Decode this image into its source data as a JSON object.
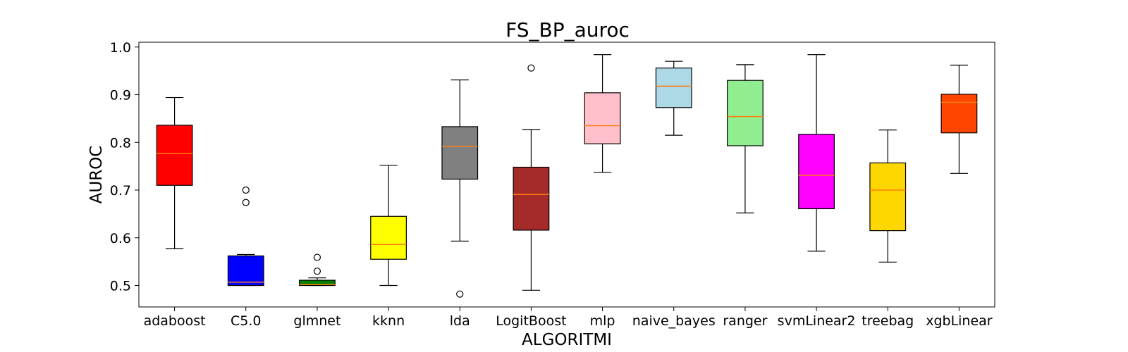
{
  "chart_data": {
    "type": "boxplot",
    "title": "FS_BP_auroc",
    "xlabel": "ALGORITMI",
    "ylabel": "AUROC",
    "ylim": [
      0.455,
      1.01
    ],
    "yticks": [
      "0.5",
      "0.6",
      "0.7",
      "0.8",
      "0.9",
      "1.0"
    ],
    "grid": false,
    "median_color": "#ff7f0e",
    "categories": [
      "adaboost",
      "C5.0",
      "glmnet",
      "kknn",
      "lda",
      "LogitBoost",
      "mlp",
      "naive_bayes",
      "ranger",
      "svmLinear2",
      "treebag",
      "xgbLinear"
    ],
    "boxes": [
      {
        "category": "adaboost",
        "whislo": 0.577,
        "q1": 0.71,
        "med": 0.777,
        "q3": 0.836,
        "whishi": 0.894,
        "fliers": [],
        "color": "#ff0000"
      },
      {
        "category": "C5.0",
        "whislo": 0.5,
        "q1": 0.5,
        "med": 0.507,
        "q3": 0.562,
        "whishi": 0.565,
        "fliers": [
          0.674,
          0.7
        ],
        "color": "#0000ff"
      },
      {
        "category": "glmnet",
        "whislo": 0.5,
        "q1": 0.5,
        "med": 0.502,
        "q3": 0.511,
        "whishi": 0.516,
        "fliers": [
          0.53,
          0.559
        ],
        "color": "#008000"
      },
      {
        "category": "kknn",
        "whislo": 0.5,
        "q1": 0.555,
        "med": 0.586,
        "q3": 0.645,
        "whishi": 0.752,
        "fliers": [],
        "color": "#ffff00"
      },
      {
        "category": "lda",
        "whislo": 0.593,
        "q1": 0.723,
        "med": 0.792,
        "q3": 0.833,
        "whishi": 0.931,
        "fliers": [
          0.482
        ],
        "color": "#808080"
      },
      {
        "category": "LogitBoost",
        "whislo": 0.49,
        "q1": 0.616,
        "med": 0.691,
        "q3": 0.748,
        "whishi": 0.827,
        "fliers": [
          0.956
        ],
        "color": "#a52a2a"
      },
      {
        "category": "mlp",
        "whislo": 0.737,
        "q1": 0.797,
        "med": 0.835,
        "q3": 0.904,
        "whishi": 0.984,
        "fliers": [],
        "color": "#ffc0cb"
      },
      {
        "category": "naive_bayes",
        "whislo": 0.815,
        "q1": 0.873,
        "med": 0.918,
        "q3": 0.956,
        "whishi": 0.97,
        "fliers": [],
        "color": "#add8e6"
      },
      {
        "category": "ranger",
        "whislo": 0.652,
        "q1": 0.793,
        "med": 0.854,
        "q3": 0.93,
        "whishi": 0.963,
        "fliers": [],
        "color": "#90ee90"
      },
      {
        "category": "svmLinear2",
        "whislo": 0.572,
        "q1": 0.661,
        "med": 0.731,
        "q3": 0.817,
        "whishi": 0.984,
        "fliers": [],
        "color": "#ff00ff"
      },
      {
        "category": "treebag",
        "whislo": 0.549,
        "q1": 0.615,
        "med": 0.7,
        "q3": 0.757,
        "whishi": 0.826,
        "fliers": [],
        "color": "#ffd700"
      },
      {
        "category": "xgbLinear",
        "whislo": 0.735,
        "q1": 0.82,
        "med": 0.884,
        "q3": 0.901,
        "whishi": 0.962,
        "fliers": [],
        "color": "#ff4500"
      }
    ]
  }
}
